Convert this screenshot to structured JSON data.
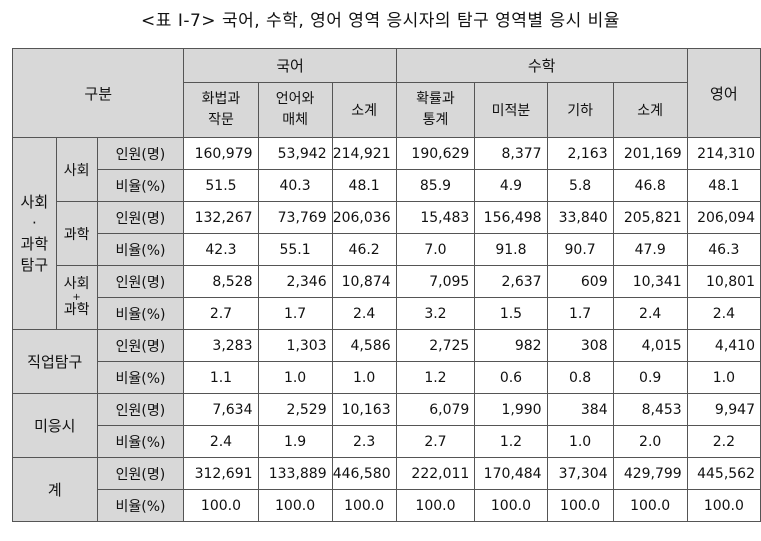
{
  "title": "<표 Ⅰ-7> 국어, 수학, 영어 영역 응시자의 탐구 영역별 응시 비율",
  "header": {
    "category": "구분",
    "korean": "국어",
    "math": "수학",
    "english": "영어",
    "sub": {
      "hwabeop_1": "화법과",
      "hwabeop_2": "작문",
      "eoneo_1": "언어와",
      "eoneo_2": "매체",
      "kor_subtotal": "소계",
      "prob_1": "확률과",
      "prob_2": "통계",
      "calculus": "미적분",
      "geometry": "기하",
      "math_subtotal": "소계"
    }
  },
  "groups": {
    "social_science_1": "사회",
    "social_science_dot": "·",
    "social_science_2": "과학",
    "social_science_3": "탐구",
    "social": "사회",
    "science": "과학",
    "mixed_1": "사회",
    "mixed_plus": "+",
    "mixed_2": "과학",
    "vocational": "직업탐구",
    "none": "미응시",
    "total": "계"
  },
  "row_labels": {
    "count": "인원(명)",
    "ratio": "비율(%)"
  },
  "rows": {
    "social_count": [
      "160,979",
      "53,942",
      "214,921",
      "190,629",
      "8,377",
      "2,163",
      "201,169",
      "214,310"
    ],
    "social_ratio": [
      "51.5",
      "40.3",
      "48.1",
      "85.9",
      "4.9",
      "5.8",
      "46.8",
      "48.1"
    ],
    "science_count": [
      "132,267",
      "73,769",
      "206,036",
      "15,483",
      "156,498",
      "33,840",
      "205,821",
      "206,094"
    ],
    "science_ratio": [
      "42.3",
      "55.1",
      "46.2",
      "7.0",
      "91.8",
      "90.7",
      "47.9",
      "46.3"
    ],
    "mixed_count": [
      "8,528",
      "2,346",
      "10,874",
      "7,095",
      "2,637",
      "609",
      "10,341",
      "10,801"
    ],
    "mixed_ratio": [
      "2.7",
      "1.7",
      "2.4",
      "3.2",
      "1.5",
      "1.7",
      "2.4",
      "2.4"
    ],
    "voc_count": [
      "3,283",
      "1,303",
      "4,586",
      "2,725",
      "982",
      "308",
      "4,015",
      "4,410"
    ],
    "voc_ratio": [
      "1.1",
      "1.0",
      "1.0",
      "1.2",
      "0.6",
      "0.8",
      "0.9",
      "1.0"
    ],
    "none_count": [
      "7,634",
      "2,529",
      "10,163",
      "6,079",
      "1,990",
      "384",
      "8,453",
      "9,947"
    ],
    "none_ratio": [
      "2.4",
      "1.9",
      "2.3",
      "2.7",
      "1.2",
      "1.0",
      "2.0",
      "2.2"
    ],
    "total_count": [
      "312,691",
      "133,889",
      "446,580",
      "222,011",
      "170,484",
      "37,304",
      "429,799",
      "445,562"
    ],
    "total_ratio": [
      "100.0",
      "100.0",
      "100.0",
      "100.0",
      "100.0",
      "100.0",
      "100.0",
      "100.0"
    ]
  },
  "colors": {
    "header_bg": "#d8d8d8",
    "border": "#555555"
  }
}
